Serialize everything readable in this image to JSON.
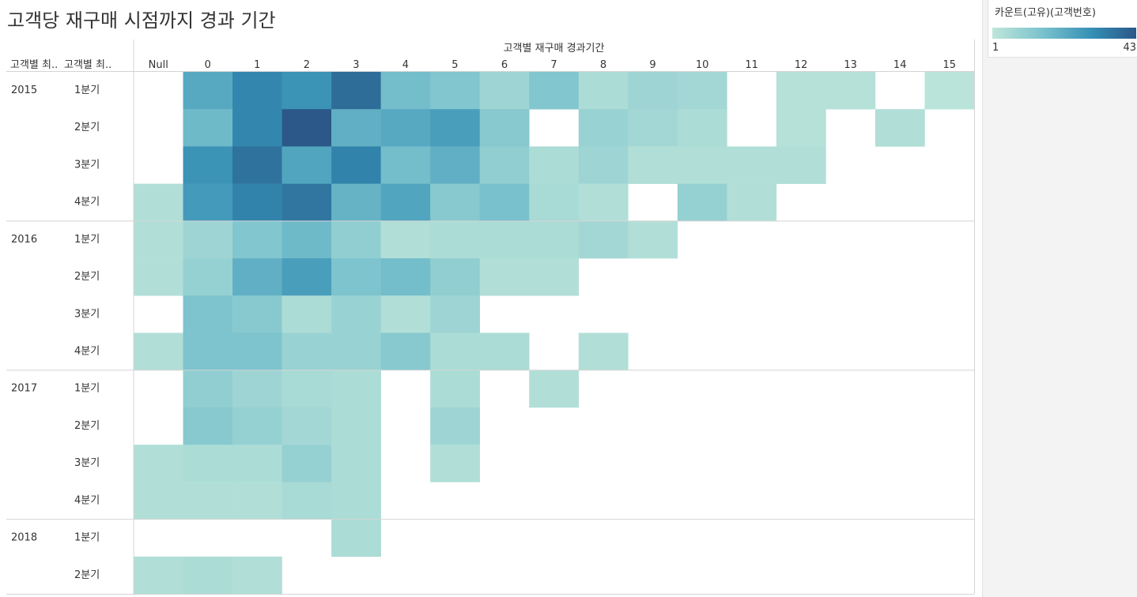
{
  "title": "고객당 재구매 시점까지 경과 기간",
  "legend": {
    "title": "카운트(고유)(고객번호)",
    "min": "1",
    "max": "43",
    "color_low": "#bfe6da",
    "color_high": "#2b5888"
  },
  "chart_data": {
    "type": "heatmap",
    "title": "고객당 재구매 시점까지 경과 기간",
    "column_header": "고객별 재구매 경과기간",
    "row_headers": [
      "고객별 최..",
      "고객별 최.."
    ],
    "columns": [
      "Null",
      "0",
      "1",
      "2",
      "3",
      "4",
      "5",
      "6",
      "7",
      "8",
      "9",
      "10",
      "11",
      "12",
      "13",
      "14",
      "15"
    ],
    "color_range": [
      1,
      43
    ],
    "rows": [
      {
        "year": "2015",
        "quarter": "1분기",
        "values": [
          null,
          23,
          32,
          29,
          38,
          17,
          14,
          8,
          14,
          5,
          8,
          7,
          null,
          3,
          3,
          null,
          2
        ]
      },
      {
        "year": "",
        "quarter": "2분기",
        "values": [
          null,
          18,
          32,
          43,
          21,
          23,
          26,
          13,
          null,
          9,
          7,
          5,
          null,
          3,
          null,
          4,
          null
        ]
      },
      {
        "year": "",
        "quarter": "3분기",
        "values": [
          null,
          29,
          37,
          24,
          33,
          17,
          21,
          11,
          5,
          8,
          4,
          4,
          4,
          4,
          null,
          null,
          null
        ]
      },
      {
        "year": "",
        "quarter": "4분기",
        "values": [
          4,
          27,
          33,
          36,
          20,
          24,
          13,
          16,
          6,
          4,
          null,
          10,
          4,
          null,
          null,
          null,
          null
        ]
      },
      {
        "year": "2016",
        "quarter": "1분기",
        "values": [
          4,
          8,
          14,
          18,
          11,
          4,
          5,
          5,
          5,
          7,
          4,
          null,
          null,
          null,
          null,
          null,
          null
        ]
      },
      {
        "year": "",
        "quarter": "2분기",
        "values": [
          4,
          10,
          21,
          26,
          15,
          17,
          11,
          4,
          4,
          null,
          null,
          null,
          null,
          null,
          null,
          null,
          null
        ]
      },
      {
        "year": "",
        "quarter": "3분기",
        "values": [
          null,
          15,
          13,
          5,
          9,
          4,
          8,
          null,
          null,
          null,
          null,
          null,
          null,
          null,
          null,
          null,
          null
        ]
      },
      {
        "year": "",
        "quarter": "4분기",
        "values": [
          4,
          15,
          15,
          9,
          9,
          13,
          5,
          5,
          null,
          4,
          null,
          null,
          null,
          null,
          null,
          null,
          null
        ]
      },
      {
        "year": "2017",
        "quarter": "1분기",
        "values": [
          null,
          11,
          8,
          6,
          5,
          null,
          5,
          null,
          4,
          null,
          null,
          null,
          null,
          null,
          null,
          null,
          null
        ]
      },
      {
        "year": "",
        "quarter": "2분기",
        "values": [
          null,
          13,
          10,
          7,
          5,
          null,
          8,
          null,
          null,
          null,
          null,
          null,
          null,
          null,
          null,
          null,
          null
        ]
      },
      {
        "year": "",
        "quarter": "3분기",
        "values": [
          4,
          5,
          5,
          10,
          5,
          null,
          4,
          null,
          null,
          null,
          null,
          null,
          null,
          null,
          null,
          null,
          null
        ]
      },
      {
        "year": "",
        "quarter": "4분기",
        "values": [
          4,
          4,
          4,
          6,
          5,
          null,
          null,
          null,
          null,
          null,
          null,
          null,
          null,
          null,
          null,
          null,
          null
        ]
      },
      {
        "year": "2018",
        "quarter": "1분기",
        "values": [
          null,
          null,
          null,
          null,
          5,
          null,
          null,
          null,
          null,
          null,
          null,
          null,
          null,
          null,
          null,
          null,
          null
        ]
      },
      {
        "year": "",
        "quarter": "2분기",
        "values": [
          4,
          5,
          4,
          null,
          null,
          null,
          null,
          null,
          null,
          null,
          null,
          null,
          null,
          null,
          null,
          null,
          null
        ]
      }
    ]
  }
}
